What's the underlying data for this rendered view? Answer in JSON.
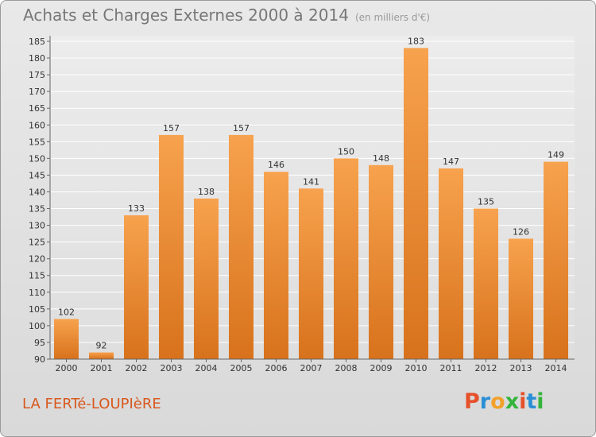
{
  "chart_data": {
    "type": "bar",
    "title": "Achats et Charges Externes 2000 à 2014",
    "subtitle": "(en milliers d'€)",
    "categories": [
      "2000",
      "2001",
      "2002",
      "2003",
      "2004",
      "2005",
      "2006",
      "2007",
      "2008",
      "2009",
      "2010",
      "2011",
      "2012",
      "2013",
      "2014"
    ],
    "values": [
      102,
      92,
      133,
      157,
      138,
      157,
      146,
      141,
      150,
      148,
      183,
      147,
      135,
      126,
      149
    ],
    "ylim": [
      90,
      185
    ],
    "ytick_step": 5,
    "grid": true,
    "bar_color": "#f08a30"
  },
  "footer": {
    "place": "LA FERTé-LOUPIèRE",
    "logo": "Proxiti"
  },
  "colors": {
    "place_text": "#d8581c",
    "logo_letters": [
      "#e6502a",
      "#2a8fd6",
      "#f2a12a",
      "#34b43c",
      "#e6502a",
      "#2a8fd6",
      "#34b43c"
    ]
  }
}
